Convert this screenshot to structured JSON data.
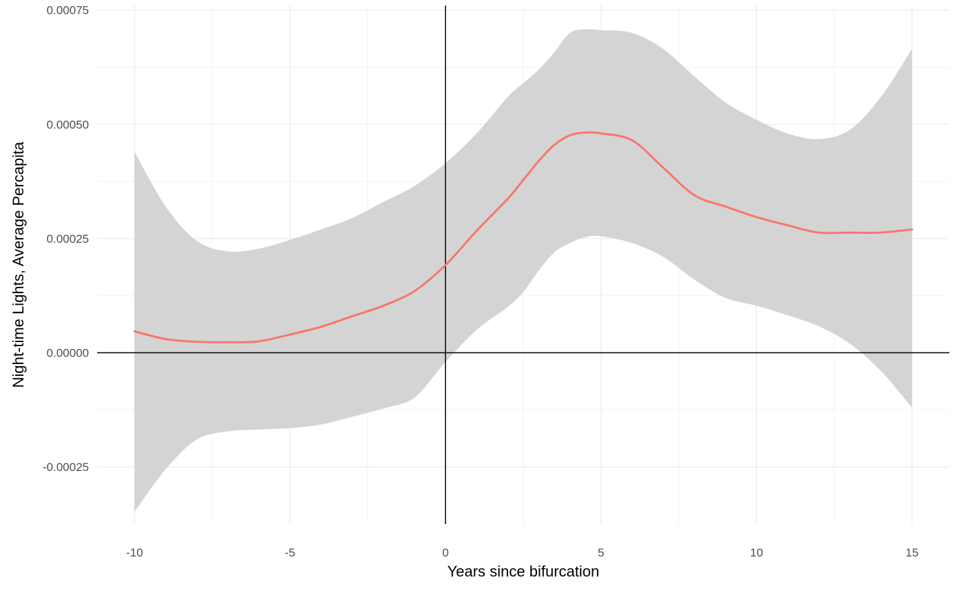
{
  "chart_data": {
    "type": "line",
    "title": "",
    "xlabel": "Years since bifurcation",
    "ylabel": "Night-time Lights, Average Percapita",
    "xlim": [
      -11.2,
      16.2
    ],
    "ylim": [
      -0.000375,
      0.00076
    ],
    "x_ticks": [
      -10,
      -5,
      0,
      5,
      10,
      15
    ],
    "x_tick_labels": [
      "-10",
      "-5",
      "0",
      "5",
      "10",
      "15"
    ],
    "y_ticks": [
      -0.00025,
      0.0,
      0.00025,
      0.0005,
      0.00075
    ],
    "y_tick_labels": [
      "-0.00025",
      "0.00000",
      "0.00025",
      "0.00050",
      "0.00075"
    ],
    "reference_lines": {
      "x": 0,
      "y": 0
    },
    "grid": true,
    "line_color": "#F8766D",
    "band_color": "#d4d4d4",
    "series": [
      {
        "x": [
          -10,
          -9,
          -8,
          -7,
          -6,
          -5,
          -4,
          -3,
          -2,
          -1,
          0,
          1,
          2,
          2.5,
          3,
          3.5,
          4,
          4.5,
          5,
          6,
          7,
          8,
          9,
          10,
          11,
          12,
          13,
          14,
          15
        ],
        "y": [
          4.7e-05,
          3e-05,
          2.4e-05,
          2.3e-05,
          2.5e-05,
          4e-05,
          5.7e-05,
          8e-05,
          0.000103,
          0.000135,
          0.000192,
          0.000267,
          0.000337,
          0.000378,
          0.00042,
          0.000455,
          0.000476,
          0.000482,
          0.00048,
          0.000465,
          0.000405,
          0.000345,
          0.00032,
          0.000297,
          0.000279,
          0.000263,
          0.000263,
          0.000263,
          0.00027
        ],
        "lower": [
          -0.000348,
          -0.000255,
          -0.00019,
          -0.000172,
          -0.000168,
          -0.000165,
          -0.000157,
          -0.00014,
          -0.000122,
          -9.8e-05,
          -2e-05,
          5e-05,
          0.0001,
          0.000133,
          0.00018,
          0.00022,
          0.00024,
          0.000253,
          0.000255,
          0.00024,
          0.00021,
          0.00016,
          0.00012,
          0.000103,
          8.2e-05,
          5.8e-05,
          2e-05,
          -4e-05,
          -0.00012
        ],
        "upper": [
          0.00044,
          0.00032,
          0.000245,
          0.000222,
          0.000228,
          0.000247,
          0.00027,
          0.000295,
          0.00033,
          0.000365,
          0.000415,
          0.00048,
          0.00056,
          0.00059,
          0.00062,
          0.000658,
          0.0007,
          0.000708,
          0.000706,
          0.0007,
          0.000665,
          0.000605,
          0.000548,
          0.00051,
          0.00048,
          0.000468,
          0.000488,
          0.00056,
          0.000665
        ]
      }
    ]
  }
}
